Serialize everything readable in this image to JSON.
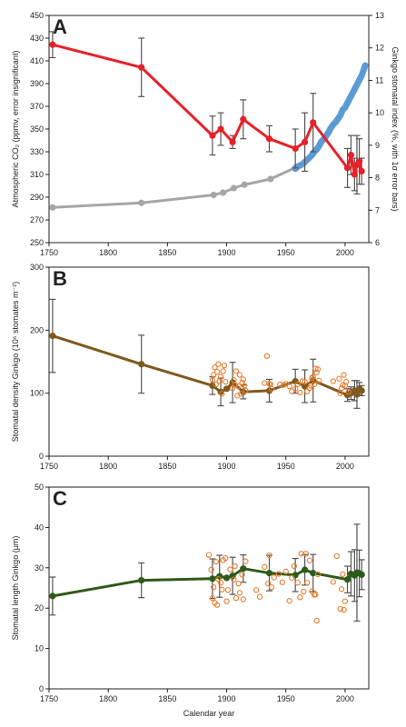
{
  "chart_data": [
    {
      "type": "line",
      "panel_letter": "A",
      "xlim": [
        1750,
        2020
      ],
      "x_ticks": [
        1750,
        1800,
        1850,
        1900,
        1950,
        2000
      ],
      "show_x_tick_labels": true,
      "xlabel": "",
      "ylabel": "Atmospheric CO₂ (ppmv, error insignificant)",
      "ylim": [
        250,
        450
      ],
      "y_ticks": [
        250,
        270,
        290,
        310,
        330,
        350,
        370,
        390,
        410,
        430,
        450
      ],
      "y2label": "Ginkgo stomatal index (%, with 1σ error bars)",
      "y2lim": [
        6,
        13
      ],
      "y2_ticks": [
        6,
        7,
        8,
        9,
        10,
        11,
        12,
        13
      ],
      "series": [
        {
          "id": "co2-ice-core",
          "axis": "left",
          "color": "#a6a6a6",
          "x": [
            1753,
            1828,
            1889,
            1897,
            1906,
            1915,
            1937,
            1958
          ],
          "y": [
            281,
            285,
            292,
            294,
            298,
            301,
            306,
            316
          ]
        },
        {
          "id": "co2-instrumental",
          "axis": "left",
          "color": "#5b9bd5",
          "x": [
            1958,
            1960,
            1962,
            1964,
            1966,
            1968,
            1970,
            1972,
            1974,
            1976,
            1978,
            1980,
            1982,
            1984,
            1986,
            1988,
            1990,
            1992,
            1994,
            1996,
            1998,
            2000,
            2002,
            2004,
            2006,
            2008,
            2010,
            2012,
            2014,
            2016,
            2017
          ],
          "y": [
            315,
            317,
            318,
            319,
            321,
            323,
            325,
            327,
            330,
            332,
            335,
            339,
            341,
            344,
            347,
            351,
            354,
            356,
            359,
            362,
            367,
            369,
            373,
            377,
            381,
            385,
            389,
            393,
            397,
            403,
            406
          ]
        },
        {
          "id": "ginkgo-stomatal-index",
          "axis": "right",
          "color": "#e8202a",
          "x": [
            1753,
            1828,
            1888,
            1895,
            1905,
            1914,
            1936,
            1958,
            1966,
            1973,
            2002,
            2005,
            2008,
            2010,
            2012,
            2014
          ],
          "y": [
            12.1,
            11.4,
            9.3,
            9.5,
            9.1,
            9.8,
            9.2,
            8.9,
            9.1,
            9.7,
            8.3,
            8.7,
            8.1,
            8.4,
            8.5,
            8.2
          ],
          "error": [
            0.4,
            0.9,
            0.6,
            0.5,
            0.2,
            0.6,
            0.4,
            0.6,
            0.9,
            0.9,
            0.6,
            0.6,
            0.5,
            0.9,
            0.7,
            0.4
          ]
        }
      ]
    },
    {
      "type": "line",
      "panel_letter": "B",
      "xlim": [
        1750,
        2020
      ],
      "x_ticks": [
        1750,
        1800,
        1850,
        1900,
        1950,
        2000
      ],
      "show_x_tick_labels": true,
      "xlabel": "",
      "ylabel": "Stomatal density Ginkgo (10⁶ stomates m⁻²)",
      "ylim": [
        0,
        300
      ],
      "y_ticks": [
        0,
        100,
        200,
        300
      ],
      "series": [
        {
          "id": "density-mean",
          "color": "#7d5a1e",
          "x": [
            1753,
            1828,
            1888,
            1895,
            1900,
            1905,
            1914,
            1936,
            1958,
            1966,
            1973,
            2002,
            2005,
            2008,
            2010,
            2012,
            2014
          ],
          "y": [
            191,
            146,
            112,
            102,
            107,
            117,
            102,
            104,
            119,
            111,
            120,
            97,
            100,
            104,
            98,
            107,
            104
          ],
          "error": [
            58,
            46,
            14,
            22,
            0,
            32,
            11,
            18,
            19,
            26,
            34,
            10,
            10,
            16,
            22,
            10,
            8
          ]
        },
        {
          "id": "density-individual",
          "type": "scatter",
          "color": "#e87c2d",
          "x": [
            1888,
            1889,
            1890,
            1891,
            1892,
            1893,
            1894,
            1895,
            1896,
            1897,
            1898,
            1899,
            1905,
            1906,
            1907,
            1908,
            1909,
            1910,
            1911,
            1912,
            1913,
            1914,
            1915,
            1916,
            1932,
            1934,
            1936,
            1937,
            1938,
            1945,
            1948,
            1950,
            1953,
            1955,
            1958,
            1960,
            1962,
            1964,
            1966,
            1968,
            1970,
            1971,
            1972,
            1973,
            1974,
            1975,
            1976,
            1977,
            1978,
            1990,
            1995,
            1996,
            1997,
            1998,
            1999,
            2000,
            2001,
            2003
          ],
          "y": [
            121,
            129,
            141,
            114,
            134,
            146,
            119,
            126,
            99,
            135,
            144,
            118,
            108,
            121,
            113,
            135,
            96,
            111,
            129,
            99,
            117,
            122,
            112,
            104,
            116,
            159,
            115,
            114,
            107,
            114,
            113,
            115,
            111,
            103,
            107,
            114,
            101,
            119,
            118,
            103,
            108,
            112,
            124,
            126,
            114,
            139,
            133,
            138,
            120,
            119,
            123,
            100,
            108,
            113,
            129,
            112,
            118,
            102
          ]
        }
      ]
    },
    {
      "type": "line",
      "panel_letter": "C",
      "xlim": [
        1750,
        2020
      ],
      "x_ticks": [
        1750,
        1800,
        1850,
        1900,
        1950,
        2000
      ],
      "show_x_tick_labels": true,
      "xlabel": "Calendar year",
      "ylabel": "Stomatal length Ginkgo (μm)",
      "ylim": [
        0,
        50
      ],
      "y_ticks": [
        0,
        10,
        20,
        30,
        40,
        50
      ],
      "series": [
        {
          "id": "length-mean",
          "color": "#2f5a1a",
          "x": [
            1753,
            1828,
            1888,
            1894,
            1900,
            1905,
            1914,
            1936,
            1958,
            1966,
            1973,
            2002,
            2005,
            2008,
            2010,
            2012,
            2014
          ],
          "y": [
            23,
            26.9,
            27.3,
            27.9,
            27.5,
            28,
            29.8,
            28.7,
            28.2,
            29.5,
            28.7,
            27.1,
            28.5,
            28.1,
            28.8,
            28.6,
            28.3
          ],
          "error": [
            4.7,
            4.3,
            4.9,
            5.2,
            0,
            4.6,
            3.4,
            4.4,
            4.1,
            3.8,
            4.6,
            3.3,
            5.5,
            6.4,
            12,
            5.8,
            3.7
          ]
        },
        {
          "id": "length-individual",
          "type": "scatter",
          "color": "#e87c2d",
          "x": [
            1885,
            1887,
            1888,
            1889,
            1890,
            1891,
            1892,
            1893,
            1895,
            1896,
            1897,
            1899,
            1900,
            1901,
            1903,
            1906,
            1907,
            1908,
            1910,
            1911,
            1913,
            1914,
            1916,
            1925,
            1928,
            1932,
            1935,
            1936,
            1938,
            1940,
            1944,
            1947,
            1950,
            1953,
            1955,
            1957,
            1960,
            1962,
            1963,
            1965,
            1967,
            1968,
            1970,
            1972,
            1974,
            1975,
            1976,
            1977,
            1990,
            1993,
            1996,
            1997,
            1998,
            1999,
            2000
          ],
          "y": [
            33.2,
            29.5,
            22.5,
            25.2,
            21.3,
            31.5,
            20.8,
            27.2,
            26.3,
            24.6,
            31.9,
            32.4,
            21.7,
            24.5,
            29.6,
            27.1,
            30.4,
            22.5,
            26.1,
            23.8,
            28.3,
            22.2,
            31.6,
            24.5,
            22.8,
            30.2,
            26.1,
            33.1,
            25.2,
            27.6,
            28.5,
            26.4,
            29.1,
            21.8,
            27.5,
            30.4,
            26.3,
            22.7,
            33.5,
            24.1,
            33.5,
            26.3,
            31.8,
            24.2,
            23.3,
            23.4,
            16.9,
            28.4,
            26.5,
            32.9,
            19.8,
            24.7,
            28.4,
            19.6,
            21.7
          ]
        }
      ]
    }
  ]
}
